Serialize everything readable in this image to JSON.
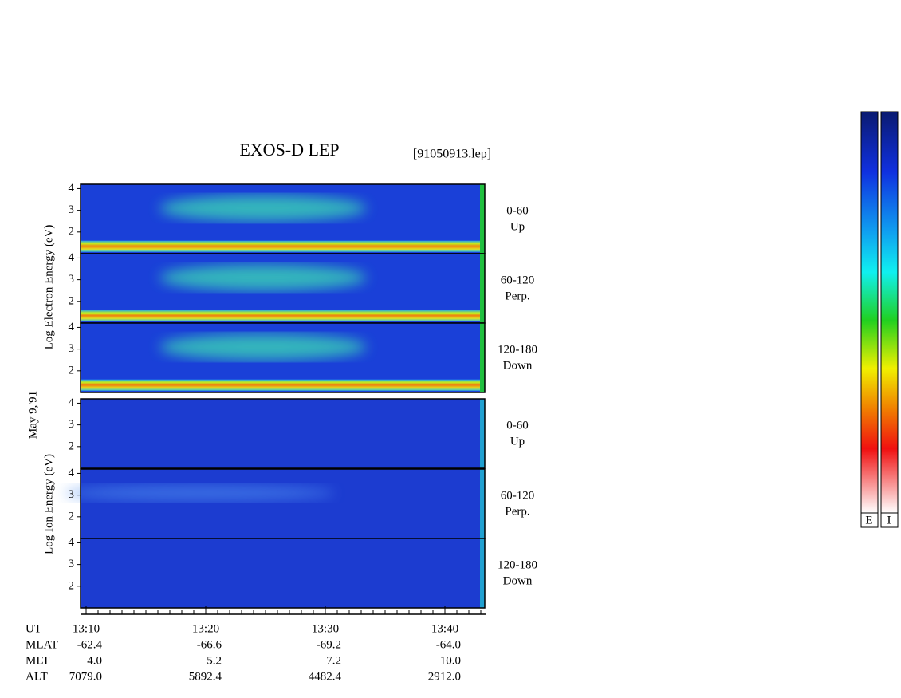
{
  "header": {
    "title": "EXOS-D LEP",
    "file": "[91050913.lep]"
  },
  "date_label": "May  9,'91",
  "panel_ylim": [
    1,
    4.2
  ],
  "panel_yticks": [
    2,
    3,
    4
  ],
  "electron": {
    "axis_label": "Log  Electron  Energy (eV)",
    "panels": [
      {
        "angle": "0-60",
        "direction": "Up"
      },
      {
        "angle": "60-120",
        "direction": "Perp."
      },
      {
        "angle": "120-180",
        "direction": "Down"
      }
    ]
  },
  "ion": {
    "axis_label": "Log  Ion  Energy (eV)",
    "panels": [
      {
        "angle": "0-60",
        "direction": "Up"
      },
      {
        "angle": "60-120",
        "direction": "Perp."
      },
      {
        "angle": "120-180",
        "direction": "Down"
      }
    ]
  },
  "time_axis": {
    "rows": [
      {
        "label": "UT",
        "values": [
          "13:10",
          "13:20",
          "13:30",
          "13:40"
        ]
      },
      {
        "label": "MLAT",
        "values": [
          "-62.4",
          "-66.6",
          "-69.2",
          "-64.0"
        ]
      },
      {
        "label": "MLT",
        "values": [
          "4.0",
          "5.2",
          "7.2",
          "10.0"
        ]
      },
      {
        "label": "ALT",
        "values": [
          "7079.0",
          "5892.4",
          "4482.4",
          "2912.0"
        ]
      }
    ]
  },
  "colorbar": {
    "labels": [
      "E",
      "I"
    ]
  }
}
